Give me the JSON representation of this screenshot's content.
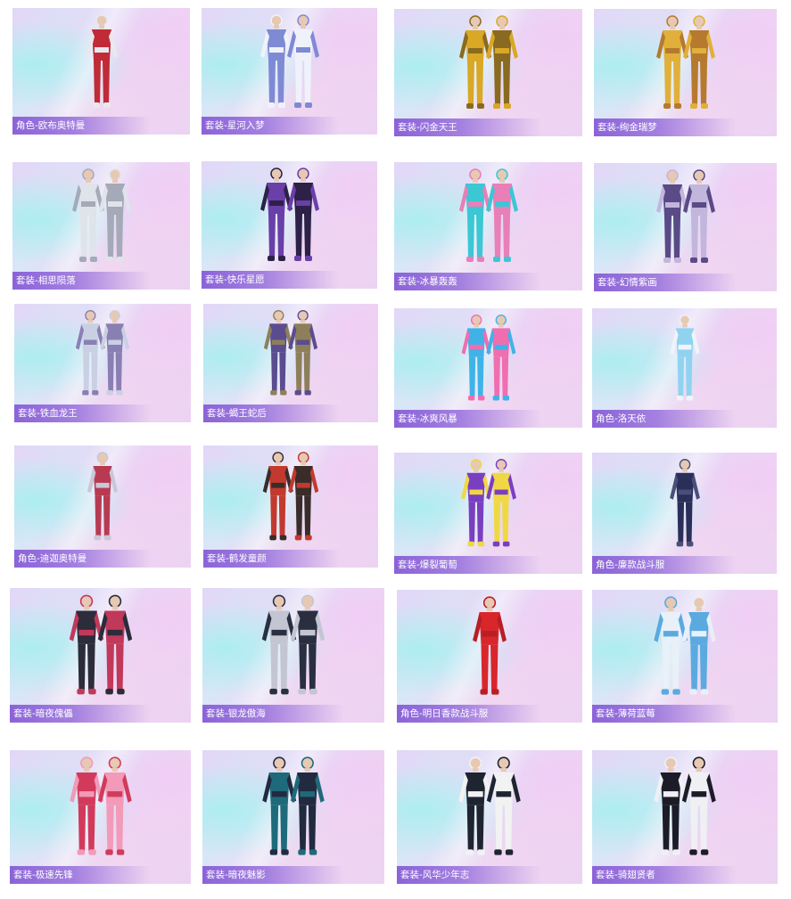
{
  "cards": [
    {
      "label": "角色-欧布奥特曼",
      "colors": [
        "#c02b36",
        "#e8e8ee"
      ]
    },
    {
      "label": "套装-星河入梦",
      "colors": [
        "#7f8ad4",
        "#f0f2fb"
      ]
    },
    {
      "label": "套装-闪金天王",
      "colors": [
        "#d9a825",
        "#8a6a20"
      ]
    },
    {
      "label": "套装-绚金瑞梦",
      "colors": [
        "#e0b03a",
        "#b57a2e"
      ]
    },
    {
      "label": "套装-相思陨落",
      "colors": [
        "#dfe3ea",
        "#a5aab8"
      ]
    },
    {
      "label": "套装-快乐星愿",
      "colors": [
        "#6a3fa8",
        "#2d2148"
      ]
    },
    {
      "label": "套装-冰暴轰轰",
      "colors": [
        "#3bc7d4",
        "#e87fb8"
      ]
    },
    {
      "label": "套装-幻情紫画",
      "colors": [
        "#5a4a86",
        "#c3b6dc"
      ]
    },
    {
      "label": "套装-铁血龙王",
      "colors": [
        "#c9d0e4",
        "#8a7fb2"
      ]
    },
    {
      "label": "套装-蝎王蛇后",
      "colors": [
        "#5b4c8f",
        "#8d7f5a"
      ]
    },
    {
      "label": "套装-冰爽风暴",
      "colors": [
        "#3fb3e8",
        "#f06db0"
      ]
    },
    {
      "label": "角色-洛天依",
      "colors": [
        "#8fd3f0",
        "#f0f4fa"
      ]
    },
    {
      "label": "角色-迪迦奥特曼",
      "colors": [
        "#b83a52",
        "#c9c6d6"
      ]
    },
    {
      "label": "套装-鹤发童颜",
      "colors": [
        "#c23a2f",
        "#3a2c28"
      ]
    },
    {
      "label": "套装-爆裂葡萄",
      "colors": [
        "#7a3fc0",
        "#f0d845"
      ]
    },
    {
      "label": "角色-廉款战斗服",
      "colors": [
        "#2a2f5a",
        "#4a4f7a"
      ]
    },
    {
      "label": "套装-暗夜傀儡",
      "colors": [
        "#2c2c3a",
        "#c2385a"
      ]
    },
    {
      "label": "套装-银龙傲海",
      "colors": [
        "#c3c6d2",
        "#2a2f40"
      ]
    },
    {
      "label": "角色-明日香款战斗服",
      "colors": [
        "#d8262c",
        "#b81e24"
      ]
    },
    {
      "label": "套装-薄荷蓝莓",
      "colors": [
        "#e8f0f8",
        "#5aaae0"
      ]
    },
    {
      "label": "套装-极速先锋",
      "colors": [
        "#d23a5c",
        "#f29ab8"
      ]
    },
    {
      "label": "套装-暗夜魅影",
      "colors": [
        "#1f6a7a",
        "#222a40"
      ]
    },
    {
      "label": "套装-风华少年志",
      "colors": [
        "#1e2430",
        "#f2f2f2"
      ]
    },
    {
      "label": "套装-骑翅贤者",
      "colors": [
        "#1c1c28",
        "#f0f0f4"
      ]
    }
  ]
}
